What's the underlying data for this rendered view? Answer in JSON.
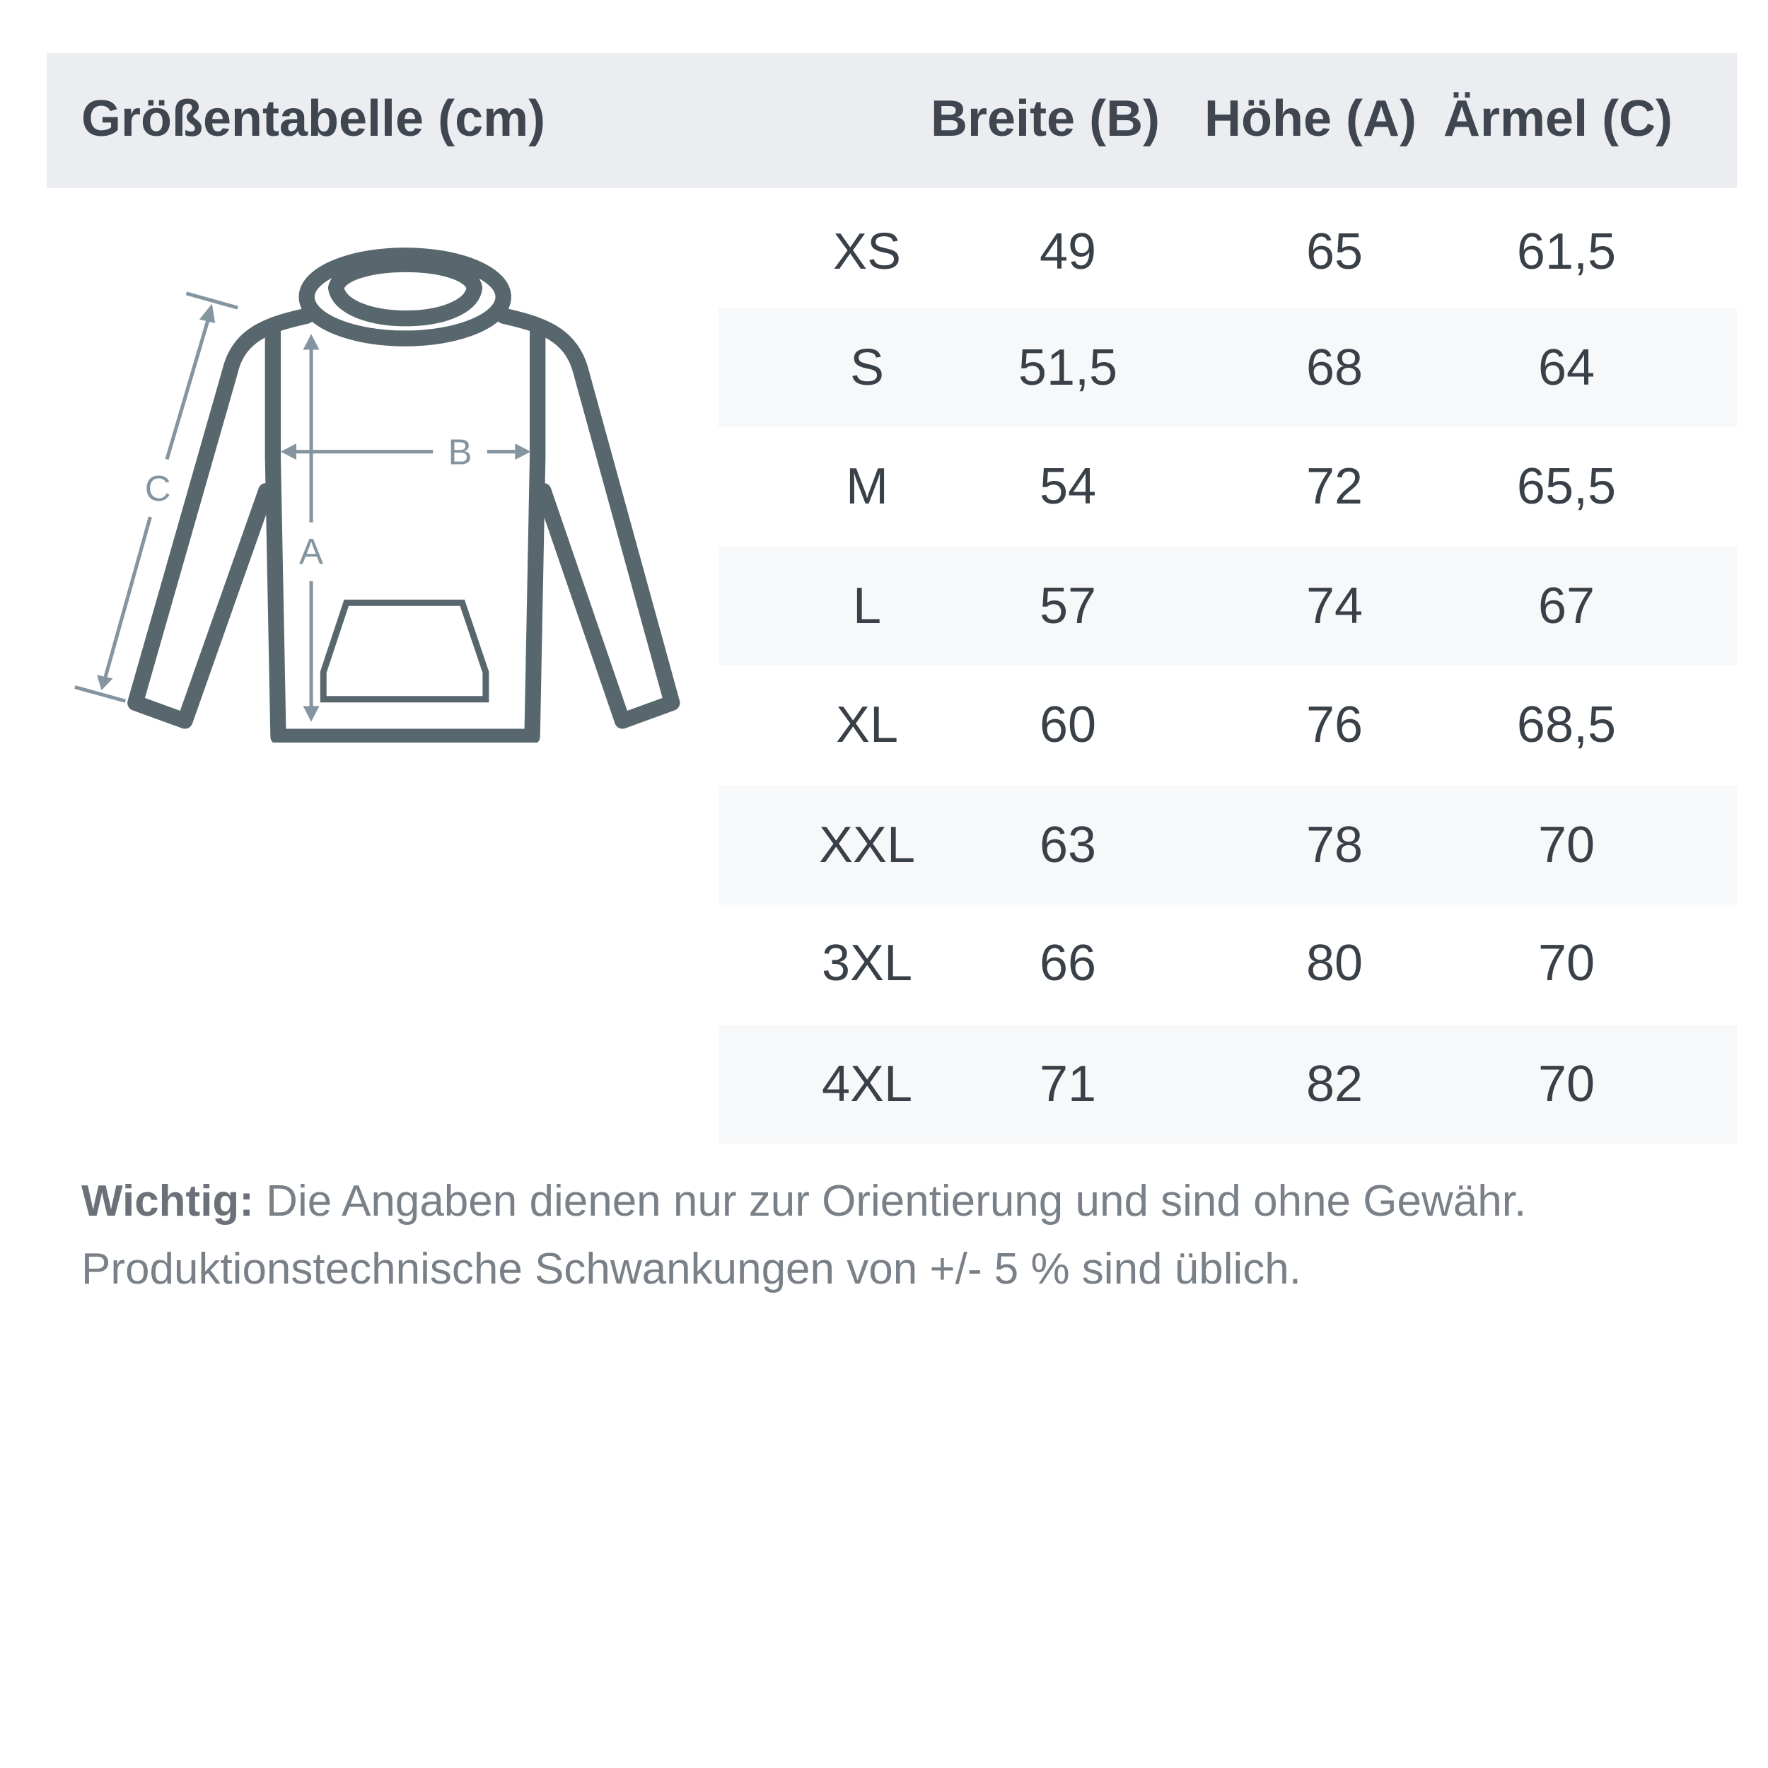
{
  "header": {
    "title": "Größentabelle (cm)",
    "columns": [
      "Breite (B)",
      "Höhe (A)",
      "Ärmel (C)"
    ]
  },
  "diagram": {
    "labels": {
      "a": "A",
      "b": "B",
      "c": "C"
    }
  },
  "rows": [
    {
      "size": "XS",
      "breite": "49",
      "hoehe": "65",
      "aermel": "61,5"
    },
    {
      "size": "S",
      "breite": "51,5",
      "hoehe": "68",
      "aermel": "64"
    },
    {
      "size": "M",
      "breite": "54",
      "hoehe": "72",
      "aermel": "65,5"
    },
    {
      "size": "L",
      "breite": "57",
      "hoehe": "74",
      "aermel": "67"
    },
    {
      "size": "XL",
      "breite": "60",
      "hoehe": "76",
      "aermel": "68,5"
    },
    {
      "size": "XXL",
      "breite": "63",
      "hoehe": "78",
      "aermel": "70"
    },
    {
      "size": "3XL",
      "breite": "66",
      "hoehe": "80",
      "aermel": "70"
    },
    {
      "size": "4XL",
      "breite": "71",
      "hoehe": "82",
      "aermel": "70"
    }
  ],
  "note": {
    "bold": "Wichtig:",
    "line1": " Die Angaben dienen nur zur Orientierung und sind ohne Gewähr.",
    "line2": "Produktionstechnische Schwankungen von +/- 5 % sind üblich."
  },
  "colors": {
    "header_bg": "#ebedf1",
    "row_shade": "#f7f8fa",
    "outline": "#58666e",
    "measure": "#8595a0"
  }
}
